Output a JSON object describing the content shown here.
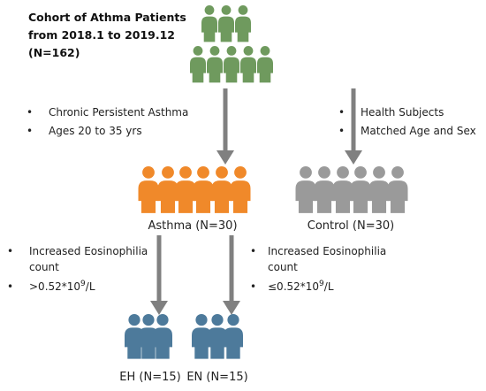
{
  "header": {
    "title_lines": [
      "Cohort of Athma Patients",
      "from 2018.1 to 2019.12",
      "(N=162)"
    ]
  },
  "left_criteria": [
    "Chronic Persistent Asthma",
    "Ages 20 to 35 yrs"
  ],
  "right_criteria": [
    "Health Subjects",
    "Matched Age and Sex"
  ],
  "groups": {
    "asthma": "Asthma (N=30)",
    "control": "Control (N=30)",
    "eh": "EH (N=15)",
    "en": "EN (N=15)"
  },
  "eh_criteria": {
    "line1": "Increased Eosinophilia",
    "line2": "count",
    "threshold": {
      "pre": ">0.52*10",
      "sup": "9",
      "post": "/L"
    }
  },
  "en_criteria": {
    "line1": "Increased Eosinophilia",
    "line2": "count",
    "threshold": {
      "pre": "≤0.52*10",
      "sup": "9",
      "post": "/L"
    }
  }
}
